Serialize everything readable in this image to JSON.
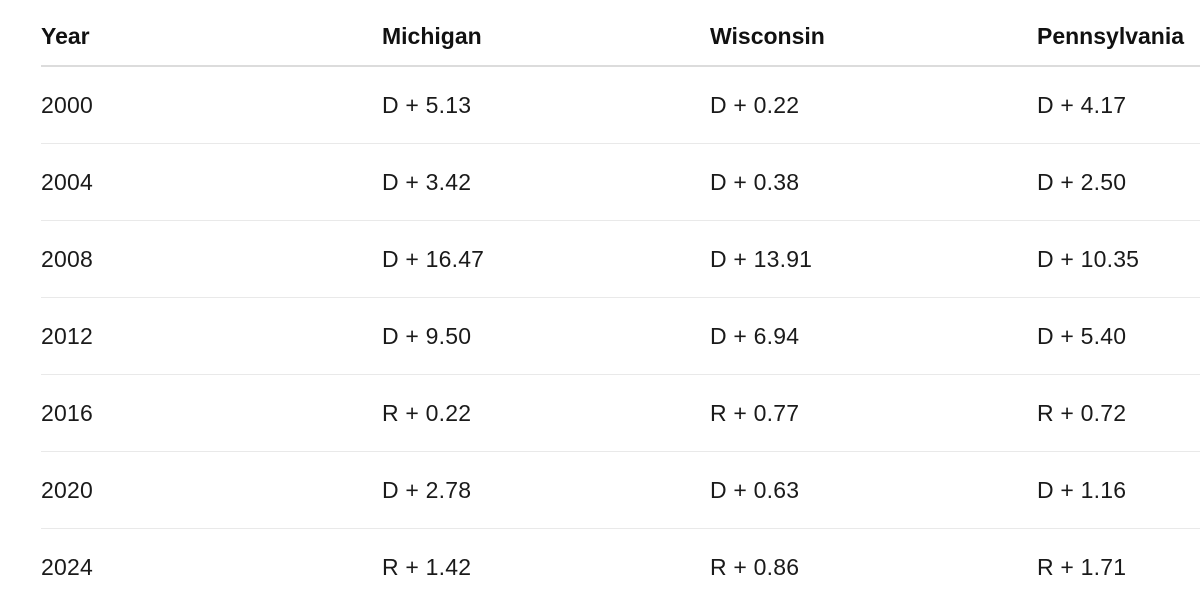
{
  "table": {
    "headers": [
      "Year",
      "Michigan",
      "Wisconsin",
      "Pennsylvania"
    ],
    "rows": [
      [
        "2000",
        "D + 5.13",
        "D + 0.22",
        "D + 4.17"
      ],
      [
        "2004",
        "D + 3.42",
        "D + 0.38",
        "D + 2.50"
      ],
      [
        "2008",
        "D + 16.47",
        "D + 13.91",
        "D + 10.35"
      ],
      [
        "2012",
        "D + 9.50",
        "D + 6.94",
        "D + 5.40"
      ],
      [
        "2016",
        "R + 0.22",
        "R + 0.77",
        "R + 0.72"
      ],
      [
        "2020",
        "D + 2.78",
        "D + 0.63",
        "D + 1.16"
      ],
      [
        "2024",
        "R + 1.42",
        "R + 0.86",
        "R + 1.71"
      ]
    ]
  }
}
